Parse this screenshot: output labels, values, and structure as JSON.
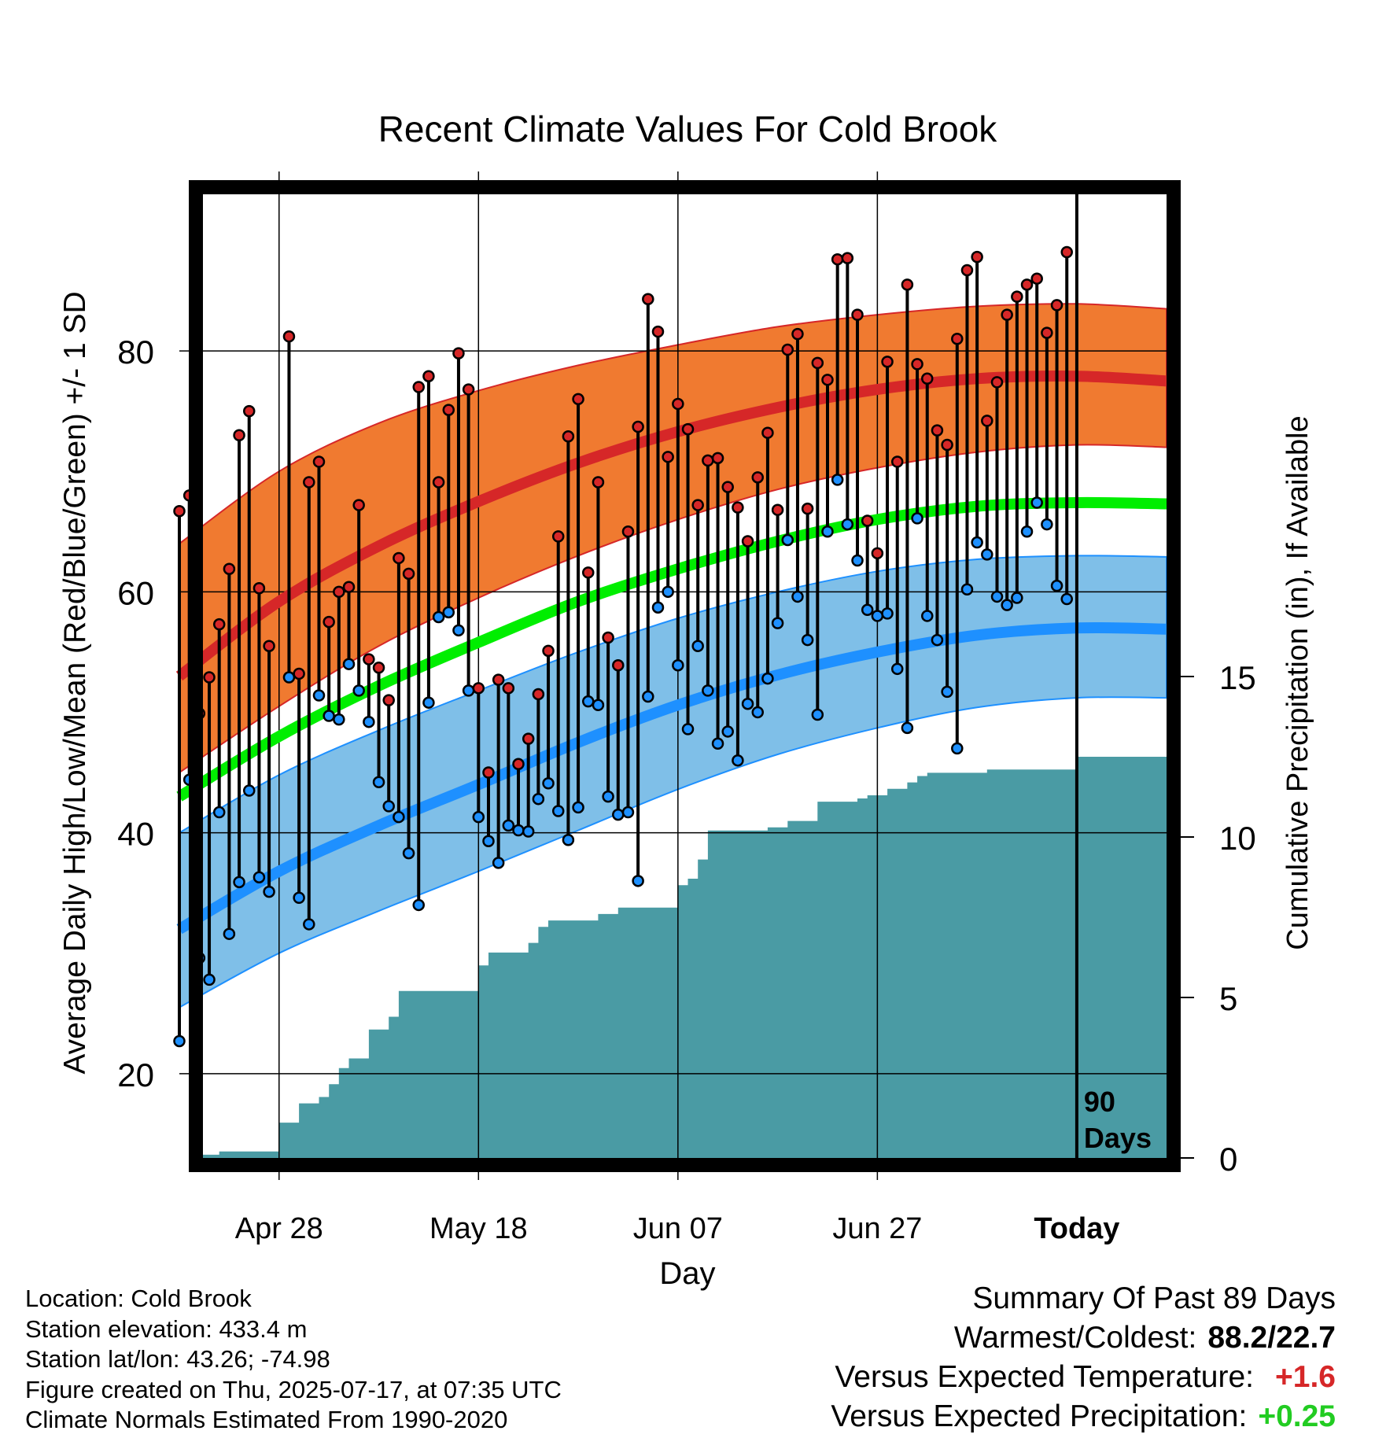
{
  "chart_data": {
    "type": "line",
    "title": "Recent Climate Values For Cold Brook",
    "xlabel": "Day",
    "ylabel": "Average Daily High/Low/Mean (Red/Blue/Green) +/- 1 SD",
    "y2label": "Cumulative Precipitation (in), If Available",
    "x_tick_labels": [
      "Apr 28",
      "May 18",
      "Jun 07",
      "Jun 27",
      "Today"
    ],
    "x_tick_days": [
      -80,
      -60,
      -40,
      -20,
      0
    ],
    "x_range_days": [
      -90,
      9
    ],
    "ylim": [
      13,
      93
    ],
    "y_ticks": [
      20,
      40,
      60,
      80
    ],
    "y2lim": [
      0,
      30
    ],
    "y2_ticks": [
      0,
      5,
      10,
      15
    ],
    "grid": true,
    "today_marker_label": "90 Days",
    "colors": {
      "high": "#d62728",
      "high_band": "#f07a30",
      "low": "#1e90ff",
      "low_band": "#7fbfe8",
      "mean": "#00ee00",
      "precip": "#4a9ba4"
    },
    "normals": {
      "day": [
        -90,
        -80,
        -70,
        -60,
        -50,
        -40,
        -30,
        -20,
        -10,
        0,
        9
      ],
      "high_mean": [
        53.0,
        59.2,
        63.8,
        67.5,
        70.7,
        73.3,
        75.3,
        76.8,
        77.7,
        77.9,
        77.5
      ],
      "high_sd_lower": [
        45.0,
        50.5,
        55.5,
        59.5,
        63.0,
        66.0,
        68.5,
        70.3,
        71.6,
        72.2,
        72.0
      ],
      "high_sd_upper": [
        64.0,
        70.0,
        74.0,
        76.7,
        78.8,
        80.5,
        82.0,
        83.0,
        83.7,
        83.9,
        83.5
      ],
      "low_mean": [
        32.0,
        36.8,
        40.6,
        44.0,
        47.5,
        50.6,
        53.1,
        55.0,
        56.4,
        57.0,
        56.9
      ],
      "low_sd_lower": [
        25.5,
        30.0,
        33.5,
        36.8,
        40.2,
        43.6,
        46.5,
        48.7,
        50.4,
        51.2,
        51.2
      ],
      "low_sd_upper": [
        40.0,
        44.8,
        48.5,
        51.8,
        55.0,
        57.8,
        60.0,
        61.7,
        62.7,
        63.0,
        62.9
      ],
      "mean": [
        43.0,
        48.0,
        52.2,
        55.8,
        59.2,
        61.9,
        64.2,
        66.0,
        67.1,
        67.4,
        67.3
      ]
    },
    "series": [
      {
        "name": "High",
        "day": [
          -90,
          -89,
          -88,
          -87,
          -86,
          -85,
          -84,
          -83,
          -82,
          -81,
          -80,
          -79,
          -78,
          -77,
          -76,
          -75,
          -74,
          -73,
          -72,
          -71,
          -70,
          -69,
          -68,
          -67,
          -66,
          -65,
          -64,
          -63,
          -62,
          -61,
          -60,
          -59,
          -58,
          -57,
          -56,
          -55,
          -54,
          -53,
          -52,
          -51,
          -50,
          -49,
          -48,
          -47,
          -46,
          -45,
          -44,
          -43,
          -42,
          -41,
          -40,
          -39,
          -38,
          -37,
          -36,
          -35,
          -34,
          -33,
          -32,
          -31,
          -30,
          -29,
          -28,
          -27,
          -26,
          -25,
          -24,
          -23,
          -22,
          -21,
          -20,
          -19,
          -18,
          -17,
          -16,
          -15,
          -14,
          -13,
          -12,
          -11,
          -10,
          -9,
          -8,
          -7,
          -6,
          -5,
          -4,
          -3,
          -2,
          -1
        ],
        "values": [
          66.7,
          68.0,
          49.9,
          52.9,
          57.3,
          61.9,
          73.0,
          75.0,
          60.3,
          55.5,
          null,
          81.2,
          53.2,
          69.1,
          70.8,
          57.5,
          60.0,
          60.4,
          67.2,
          54.4,
          53.7,
          51.0,
          62.8,
          61.5,
          77.0,
          77.9,
          69.1,
          75.1,
          79.8,
          76.8,
          52.0,
          45.0,
          52.7,
          52.0,
          45.7,
          47.8,
          51.5,
          55.1,
          64.6,
          72.9,
          76.0,
          61.6,
          69.1,
          56.2,
          53.9,
          65.0,
          73.7,
          84.3,
          81.6,
          71.2,
          75.6,
          73.5,
          67.2,
          70.9,
          71.1,
          68.7,
          67.0,
          64.2,
          69.5,
          73.2,
          66.8,
          80.1,
          81.4,
          66.9,
          79.0,
          77.6,
          87.6,
          87.7,
          83.0,
          65.9,
          63.2,
          79.1,
          70.8,
          85.5,
          78.9,
          77.7,
          73.4,
          72.2,
          81.0,
          86.7,
          87.8,
          74.2,
          77.4,
          83.0,
          84.5,
          85.5,
          86.0,
          81.5,
          83.8,
          88.2
        ]
      },
      {
        "name": "Low",
        "day": [
          -90,
          -89,
          -88,
          -87,
          -86,
          -85,
          -84,
          -83,
          -82,
          -81,
          -80,
          -79,
          -78,
          -77,
          -76,
          -75,
          -74,
          -73,
          -72,
          -71,
          -70,
          -69,
          -68,
          -67,
          -66,
          -65,
          -64,
          -63,
          -62,
          -61,
          -60,
          -59,
          -58,
          -57,
          -56,
          -55,
          -54,
          -53,
          -52,
          -51,
          -50,
          -49,
          -48,
          -47,
          -46,
          -45,
          -44,
          -43,
          -42,
          -41,
          -40,
          -39,
          -38,
          -37,
          -36,
          -35,
          -34,
          -33,
          -32,
          -31,
          -30,
          -29,
          -28,
          -27,
          -26,
          -25,
          -24,
          -23,
          -22,
          -21,
          -20,
          -19,
          -18,
          -17,
          -16,
          -15,
          -14,
          -13,
          -12,
          -11,
          -10,
          -9,
          -8,
          -7,
          -6,
          -5,
          -4,
          -3,
          -2,
          -1
        ],
        "values": [
          22.7,
          44.4,
          29.6,
          27.8,
          41.7,
          31.6,
          35.9,
          43.5,
          36.3,
          35.1,
          null,
          52.9,
          34.6,
          32.4,
          51.4,
          49.7,
          49.4,
          54.0,
          51.8,
          49.2,
          44.2,
          42.2,
          41.3,
          38.3,
          34.0,
          50.8,
          57.9,
          58.3,
          56.8,
          51.8,
          41.3,
          39.3,
          37.5,
          40.6,
          40.2,
          40.1,
          42.8,
          44.1,
          41.8,
          39.4,
          42.1,
          50.9,
          50.6,
          43.0,
          41.5,
          41.7,
          36.0,
          51.3,
          58.7,
          60.0,
          53.9,
          48.6,
          55.5,
          51.8,
          47.4,
          48.4,
          46.0,
          50.7,
          50.0,
          52.8,
          57.4,
          64.3,
          59.6,
          56.0,
          49.8,
          65.0,
          69.3,
          65.6,
          62.6,
          58.5,
          58.0,
          58.2,
          53.6,
          48.7,
          66.1,
          58.0,
          56.0,
          51.7,
          47.0,
          60.2,
          64.1,
          63.1,
          59.6,
          58.9,
          59.5,
          65.0,
          67.4,
          65.6,
          60.5,
          59.4
        ]
      }
    ],
    "precipitation": {
      "day": [
        -90,
        -88,
        -86,
        -84,
        -82,
        -80,
        -79,
        -78,
        -77,
        -76,
        -75,
        -74,
        -73,
        -72,
        -71,
        -70,
        -69,
        -68,
        -67,
        -66,
        -65,
        -64,
        -63,
        -62,
        -61,
        -60,
        -59,
        -58,
        -57,
        -56,
        -55,
        -54,
        -53,
        -52,
        -51,
        -50,
        -49,
        -48,
        -47,
        -46,
        -45,
        -44,
        -43,
        -42,
        -41,
        -40,
        -39,
        -38,
        -37,
        -36,
        -35,
        -34,
        -33,
        -32,
        -31,
        -30,
        -29,
        -28,
        -27,
        -26,
        -25,
        -24,
        -23,
        -22,
        -21,
        -20,
        -19,
        -18,
        -17,
        -16,
        -15,
        -14,
        -13,
        -12,
        -11,
        -10,
        -9,
        -8,
        -7,
        -6,
        -5,
        -4,
        -3,
        -2,
        -1,
        0,
        1,
        3,
        5,
        7,
        9
      ],
      "values": [
        0.0,
        0.1,
        0.2,
        0.2,
        0.2,
        1.1,
        1.1,
        1.7,
        1.7,
        1.9,
        2.3,
        2.8,
        3.1,
        3.1,
        4.0,
        4.0,
        4.4,
        5.2,
        5.2,
        5.2,
        5.2,
        5.2,
        5.2,
        5.2,
        5.2,
        6.0,
        6.4,
        6.4,
        6.4,
        6.4,
        6.7,
        7.2,
        7.4,
        7.4,
        7.4,
        7.4,
        7.4,
        7.6,
        7.6,
        7.8,
        7.8,
        7.8,
        7.8,
        7.8,
        7.8,
        8.5,
        8.7,
        9.3,
        10.2,
        10.2,
        10.2,
        10.2,
        10.2,
        10.2,
        10.3,
        10.3,
        10.5,
        10.5,
        10.5,
        11.1,
        11.1,
        11.1,
        11.1,
        11.2,
        11.3,
        11.3,
        11.5,
        11.5,
        11.7,
        11.9,
        12.0,
        12.0,
        12.0,
        12.0,
        12.0,
        12.0,
        12.1,
        12.1,
        12.1,
        12.1,
        12.1,
        12.1,
        12.1,
        12.1,
        12.1,
        12.5,
        12.5,
        12.5,
        12.5,
        12.5,
        12.5
      ]
    }
  },
  "info": {
    "location": "Location: Cold Brook",
    "elevation": "Station elevation: 433.4 m",
    "latlon": "Station lat/lon: 43.26; -74.98",
    "created": "Figure created on Thu, 2025-07-17, at 07:35 UTC",
    "normals_period": "Climate Normals Estimated From 1990-2020"
  },
  "summary": {
    "title": "Summary Of Past 89 Days",
    "warm_cold_label": "Warmest/Coldest:",
    "warm_cold_value": "88.2/22.7",
    "temp_label": "Versus Expected Temperature:",
    "temp_value": "+1.6",
    "temp_color": "#d62728",
    "precip_label": "Versus Expected Precipitation:",
    "precip_value": "+0.25",
    "precip_color": "#22cc22"
  }
}
